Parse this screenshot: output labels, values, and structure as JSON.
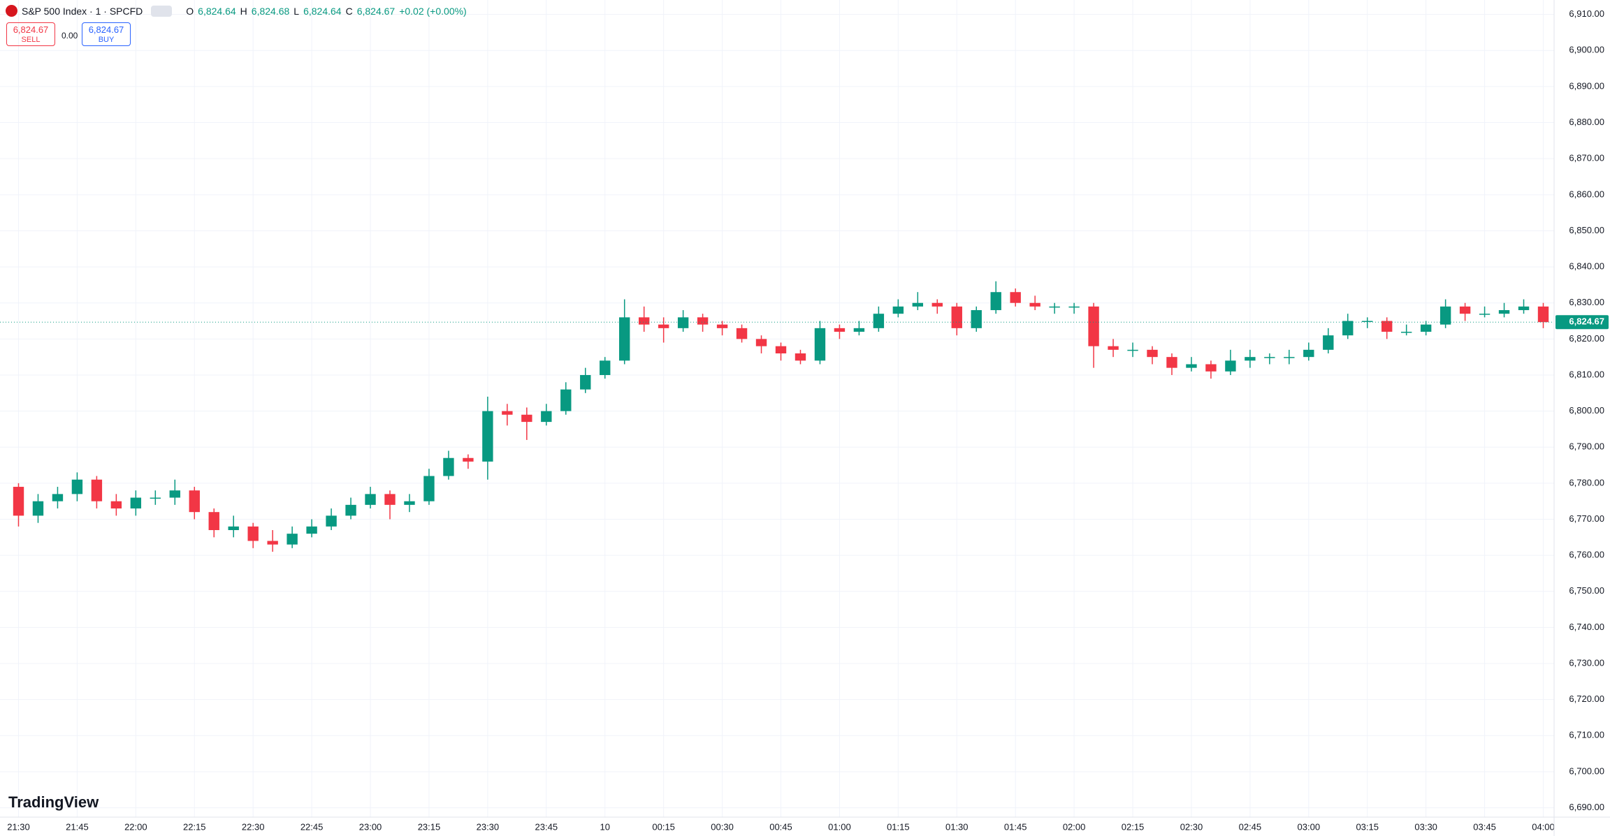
{
  "header": {
    "symbol": "S&P 500 Index · 1 · SPCFD",
    "o_label": "O",
    "o": "6,824.64",
    "h_label": "H",
    "h": "6,824.68",
    "l_label": "L",
    "l": "6,824.64",
    "c_label": "C",
    "c": "6,824.67",
    "change": "+0.02 (+0.00%)"
  },
  "trade_panel": {
    "sell_price": "6,824.67",
    "sell": "SELL",
    "spread": "0.00",
    "buy_price": "6,824.67",
    "buy": "BUY"
  },
  "brand": "TradingView",
  "chart_data": {
    "type": "candlestick",
    "up_color": "#089981",
    "down_color": "#f23645",
    "grid": true,
    "categories": [
      "21:30",
      null,
      null,
      "21:45",
      null,
      null,
      "22:00",
      null,
      null,
      "22:15",
      null,
      null,
      "22:30",
      null,
      null,
      "22:45",
      null,
      null,
      "23:00",
      null,
      null,
      "23:15",
      null,
      null,
      "23:30",
      null,
      null,
      "23:45",
      null,
      null,
      "10",
      null,
      null,
      "00:15",
      null,
      null,
      "00:30",
      null,
      null,
      "00:45",
      null,
      null,
      "01:00",
      null,
      null,
      "01:15",
      null,
      null,
      "01:30",
      null,
      null,
      "01:45",
      null,
      null,
      "02:00",
      null,
      null,
      "02:15",
      null,
      null,
      "02:30",
      null,
      null,
      "02:45",
      null,
      null,
      "03:00",
      null,
      null,
      "03:15",
      null,
      null,
      "03:30",
      null,
      null,
      "03:45",
      null,
      null,
      "04:00"
    ],
    "open": [
      6779,
      6771,
      6775,
      6777,
      6781,
      6775,
      6773,
      6776,
      6776,
      6778,
      6772,
      6767,
      6768,
      6764,
      6763,
      6766,
      6768,
      6771,
      6774,
      6777,
      6774,
      6775,
      6782,
      6787,
      6786,
      6800,
      6799,
      6797,
      6800,
      6806,
      6810,
      6814,
      6826,
      6824,
      6823,
      6826,
      6824,
      6823,
      6820,
      6818,
      6816,
      6814,
      6823,
      6822,
      6823,
      6827,
      6829,
      6830,
      6829,
      6823,
      6828,
      6833,
      6830,
      6829,
      6829,
      6829,
      6818,
      6817,
      6817,
      6815,
      6812,
      6813,
      6811,
      6814,
      6815,
      6815,
      6815,
      6817,
      6821,
      6825,
      6825,
      6822,
      6822,
      6824,
      6829,
      6827,
      6827,
      6828,
      6829
    ],
    "high": [
      6780,
      6777,
      6779,
      6783,
      6782,
      6777,
      6778,
      6778,
      6781,
      6779,
      6773,
      6771,
      6769,
      6767,
      6768,
      6770,
      6773,
      6776,
      6779,
      6778,
      6777,
      6784,
      6789,
      6788,
      6804,
      6802,
      6801,
      6802,
      6808,
      6812,
      6815,
      6831,
      6829,
      6826,
      6828,
      6827,
      6825,
      6824,
      6821,
      6819,
      6817,
      6825,
      6824,
      6825,
      6829,
      6831,
      6833,
      6831,
      6830,
      6829,
      6836,
      6834,
      6832,
      6830,
      6830,
      6830,
      6820,
      6819,
      6818,
      6816,
      6815,
      6814,
      6817,
      6817,
      6816,
      6817,
      6819,
      6823,
      6827,
      6826,
      6826,
      6824,
      6825,
      6831,
      6830,
      6829,
      6830,
      6831,
      6830
    ],
    "low": [
      6768,
      6769,
      6773,
      6775,
      6773,
      6771,
      6771,
      6774,
      6774,
      6770,
      6765,
      6765,
      6762,
      6761,
      6762,
      6765,
      6767,
      6770,
      6773,
      6770,
      6772,
      6774,
      6781,
      6784,
      6781,
      6796,
      6792,
      6796,
      6799,
      6805,
      6809,
      6813,
      6822,
      6819,
      6822,
      6822,
      6821,
      6819,
      6816,
      6814,
      6813,
      6813,
      6820,
      6821,
      6822,
      6826,
      6828,
      6827,
      6821,
      6822,
      6827,
      6829,
      6828,
      6827,
      6827,
      6812,
      6815,
      6815,
      6813,
      6810,
      6811,
      6809,
      6810,
      6812,
      6813,
      6813,
      6814,
      6816,
      6820,
      6823,
      6820,
      6821,
      6821,
      6823,
      6825,
      6826,
      6826,
      6827,
      6823
    ],
    "close": [
      6771,
      6775,
      6777,
      6781,
      6775,
      6773,
      6776,
      6776,
      6778,
      6772,
      6767,
      6768,
      6764,
      6763,
      6766,
      6768,
      6771,
      6774,
      6777,
      6774,
      6775,
      6782,
      6787,
      6786,
      6800,
      6799,
      6797,
      6800,
      6806,
      6810,
      6814,
      6826,
      6824,
      6823,
      6826,
      6824,
      6823,
      6820,
      6818,
      6816,
      6814,
      6823,
      6822,
      6823,
      6827,
      6829,
      6830,
      6829,
      6823,
      6828,
      6833,
      6830,
      6829,
      6829,
      6829,
      6818,
      6817,
      6817,
      6815,
      6812,
      6813,
      6811,
      6814,
      6815,
      6815,
      6815,
      6817,
      6821,
      6825,
      6825,
      6822,
      6822,
      6824,
      6829,
      6827,
      6827,
      6828,
      6829,
      6824.67
    ],
    "last_price": {
      "value": 6824.67,
      "label": "6,824.67"
    },
    "ylim": [
      6687.4,
      6914
    ],
    "yticks": [
      {
        "value": 6690,
        "label": "6,690.00"
      },
      {
        "value": 6700,
        "label": "6,700.00"
      },
      {
        "value": 6710,
        "label": "6,710.00"
      },
      {
        "value": 6720,
        "label": "6,720.00"
      },
      {
        "value": 6730,
        "label": "6,730.00"
      },
      {
        "value": 6740,
        "label": "6,740.00"
      },
      {
        "value": 6750,
        "label": "6,750.00"
      },
      {
        "value": 6760,
        "label": "6,760.00"
      },
      {
        "value": 6770,
        "label": "6,770.00"
      },
      {
        "value": 6780,
        "label": "6,780.00"
      },
      {
        "value": 6790,
        "label": "6,790.00"
      },
      {
        "value": 6800,
        "label": "6,800.00"
      },
      {
        "value": 6810,
        "label": "6,810.00"
      },
      {
        "value": 6820,
        "label": "6,820.00"
      },
      {
        "value": 6830,
        "label": "6,830.00"
      },
      {
        "value": 6840,
        "label": "6,840.00"
      },
      {
        "value": 6850,
        "label": "6,850.00"
      },
      {
        "value": 6860,
        "label": "6,860.00"
      },
      {
        "value": 6870,
        "label": "6,870.00"
      },
      {
        "value": 6880,
        "label": "6,880.00"
      },
      {
        "value": 6890,
        "label": "6,890.00"
      },
      {
        "value": 6900,
        "label": "6,900.00"
      },
      {
        "value": 6910,
        "label": "6,910.00"
      }
    ]
  }
}
